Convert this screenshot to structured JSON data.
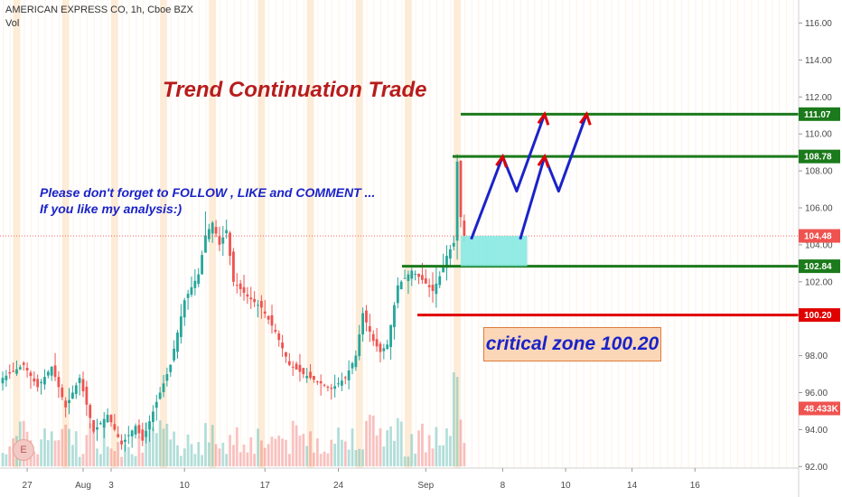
{
  "header": {
    "symbol_line": "AMERICAN EXPRESS CO, 1h, Cboe BZX",
    "vol_label": "Vol"
  },
  "annotations": {
    "title": "Trend Continuation Trade",
    "note_line1": "Please don't forget  to FOLLOW , LIKE and COMMENT ...",
    "note_line2": "If you like my analysis:)",
    "critical": "critical zone 100.20",
    "earnings_badge": "E"
  },
  "colors": {
    "up": "#26a69a",
    "down": "#ef5350",
    "level_green": "#1b7a1b",
    "level_red": "#e00000",
    "arrow_blue": "#1a23c8",
    "arrow_red": "#e00000",
    "zone_cyan": "#7fe8e0",
    "last_price": "#ef5350",
    "band": "#fde6cc"
  },
  "chart_data": {
    "type": "candlestick",
    "title": "AMERICAN EXPRESS CO, 1h, Cboe BZX",
    "ylim": [
      92,
      117
    ],
    "y_ticks": [
      "92.00",
      "94.00",
      "96.00",
      "98.00",
      "100.00",
      "102.00",
      "104.00",
      "106.00",
      "108.00",
      "110.00",
      "112.00",
      "114.00",
      "116.00"
    ],
    "x_ticks": [
      "27",
      "Aug",
      "3",
      "10",
      "17",
      "24",
      "Sep",
      "8",
      "10",
      "14",
      "16"
    ],
    "price_path": [
      [
        0,
        96.8
      ],
      [
        6,
        97.5
      ],
      [
        10,
        96.3
      ],
      [
        14,
        97.4
      ],
      [
        18,
        95.2
      ],
      [
        22,
        96.8
      ],
      [
        26,
        93.9
      ],
      [
        30,
        94.8
      ],
      [
        34,
        93.2
      ],
      [
        38,
        94.2
      ],
      [
        40,
        93.4
      ],
      [
        44,
        95.5
      ],
      [
        48,
        97.5
      ],
      [
        52,
        101.0
      ],
      [
        56,
        102.4
      ],
      [
        58,
        104.5
      ],
      [
        60,
        105.2
      ],
      [
        62,
        104.0
      ],
      [
        64,
        104.8
      ],
      [
        66,
        102.0
      ],
      [
        70,
        101.2
      ],
      [
        74,
        100.6
      ],
      [
        78,
        99.3
      ],
      [
        82,
        97.5
      ],
      [
        86,
        97.0
      ],
      [
        90,
        96.6
      ],
      [
        94,
        96.2
      ],
      [
        98,
        96.8
      ],
      [
        101,
        98.0
      ],
      [
        103,
        100.3
      ],
      [
        106,
        98.8
      ],
      [
        108,
        98.2
      ],
      [
        110,
        98.6
      ],
      [
        113,
        101.8
      ],
      [
        117,
        102.6
      ],
      [
        120,
        102.1
      ],
      [
        123,
        101.5
      ],
      [
        125,
        102.3
      ],
      [
        127,
        103.4
      ],
      [
        129,
        104.1
      ],
      [
        130,
        108.5
      ],
      [
        131,
        105.5
      ],
      [
        132,
        104.48
      ]
    ],
    "price_extremes": [
      [
        130,
        108.9,
        103.2
      ],
      [
        124,
        102.8,
        100.6
      ],
      [
        58,
        105.8,
        103.6
      ]
    ],
    "x_tick_index": [
      7,
      23,
      31,
      52,
      75,
      96,
      121,
      143,
      161,
      180,
      198
    ],
    "volume_axis_label": "48.433K",
    "last_price": 104.48,
    "levels": [
      {
        "label": "111.07",
        "value": 111.07,
        "color": "green"
      },
      {
        "label": "108.78",
        "value": 108.78,
        "color": "green"
      },
      {
        "label": "102.84",
        "value": 102.84,
        "color": "green"
      },
      {
        "label": "100.20",
        "value": 100.2,
        "color": "red"
      }
    ],
    "zone": {
      "from_index": 131,
      "to_index": 150,
      "low": 102.84,
      "high": 104.48
    },
    "projection_paths": [
      [
        [
          134,
          104.3
        ],
        [
          143,
          108.78
        ],
        [
          147,
          106.9
        ],
        [
          155,
          111.07
        ]
      ],
      [
        [
          148,
          104.3
        ],
        [
          155,
          108.78
        ],
        [
          159,
          106.9
        ],
        [
          167,
          111.07
        ]
      ]
    ],
    "bands_index": [
      [
        3,
        5
      ],
      [
        17,
        19
      ],
      [
        31,
        33
      ],
      [
        45,
        47
      ],
      [
        59,
        61
      ],
      [
        73,
        75
      ],
      [
        87,
        89
      ],
      [
        101,
        103
      ],
      [
        115,
        117
      ],
      [
        129,
        131
      ]
    ]
  }
}
